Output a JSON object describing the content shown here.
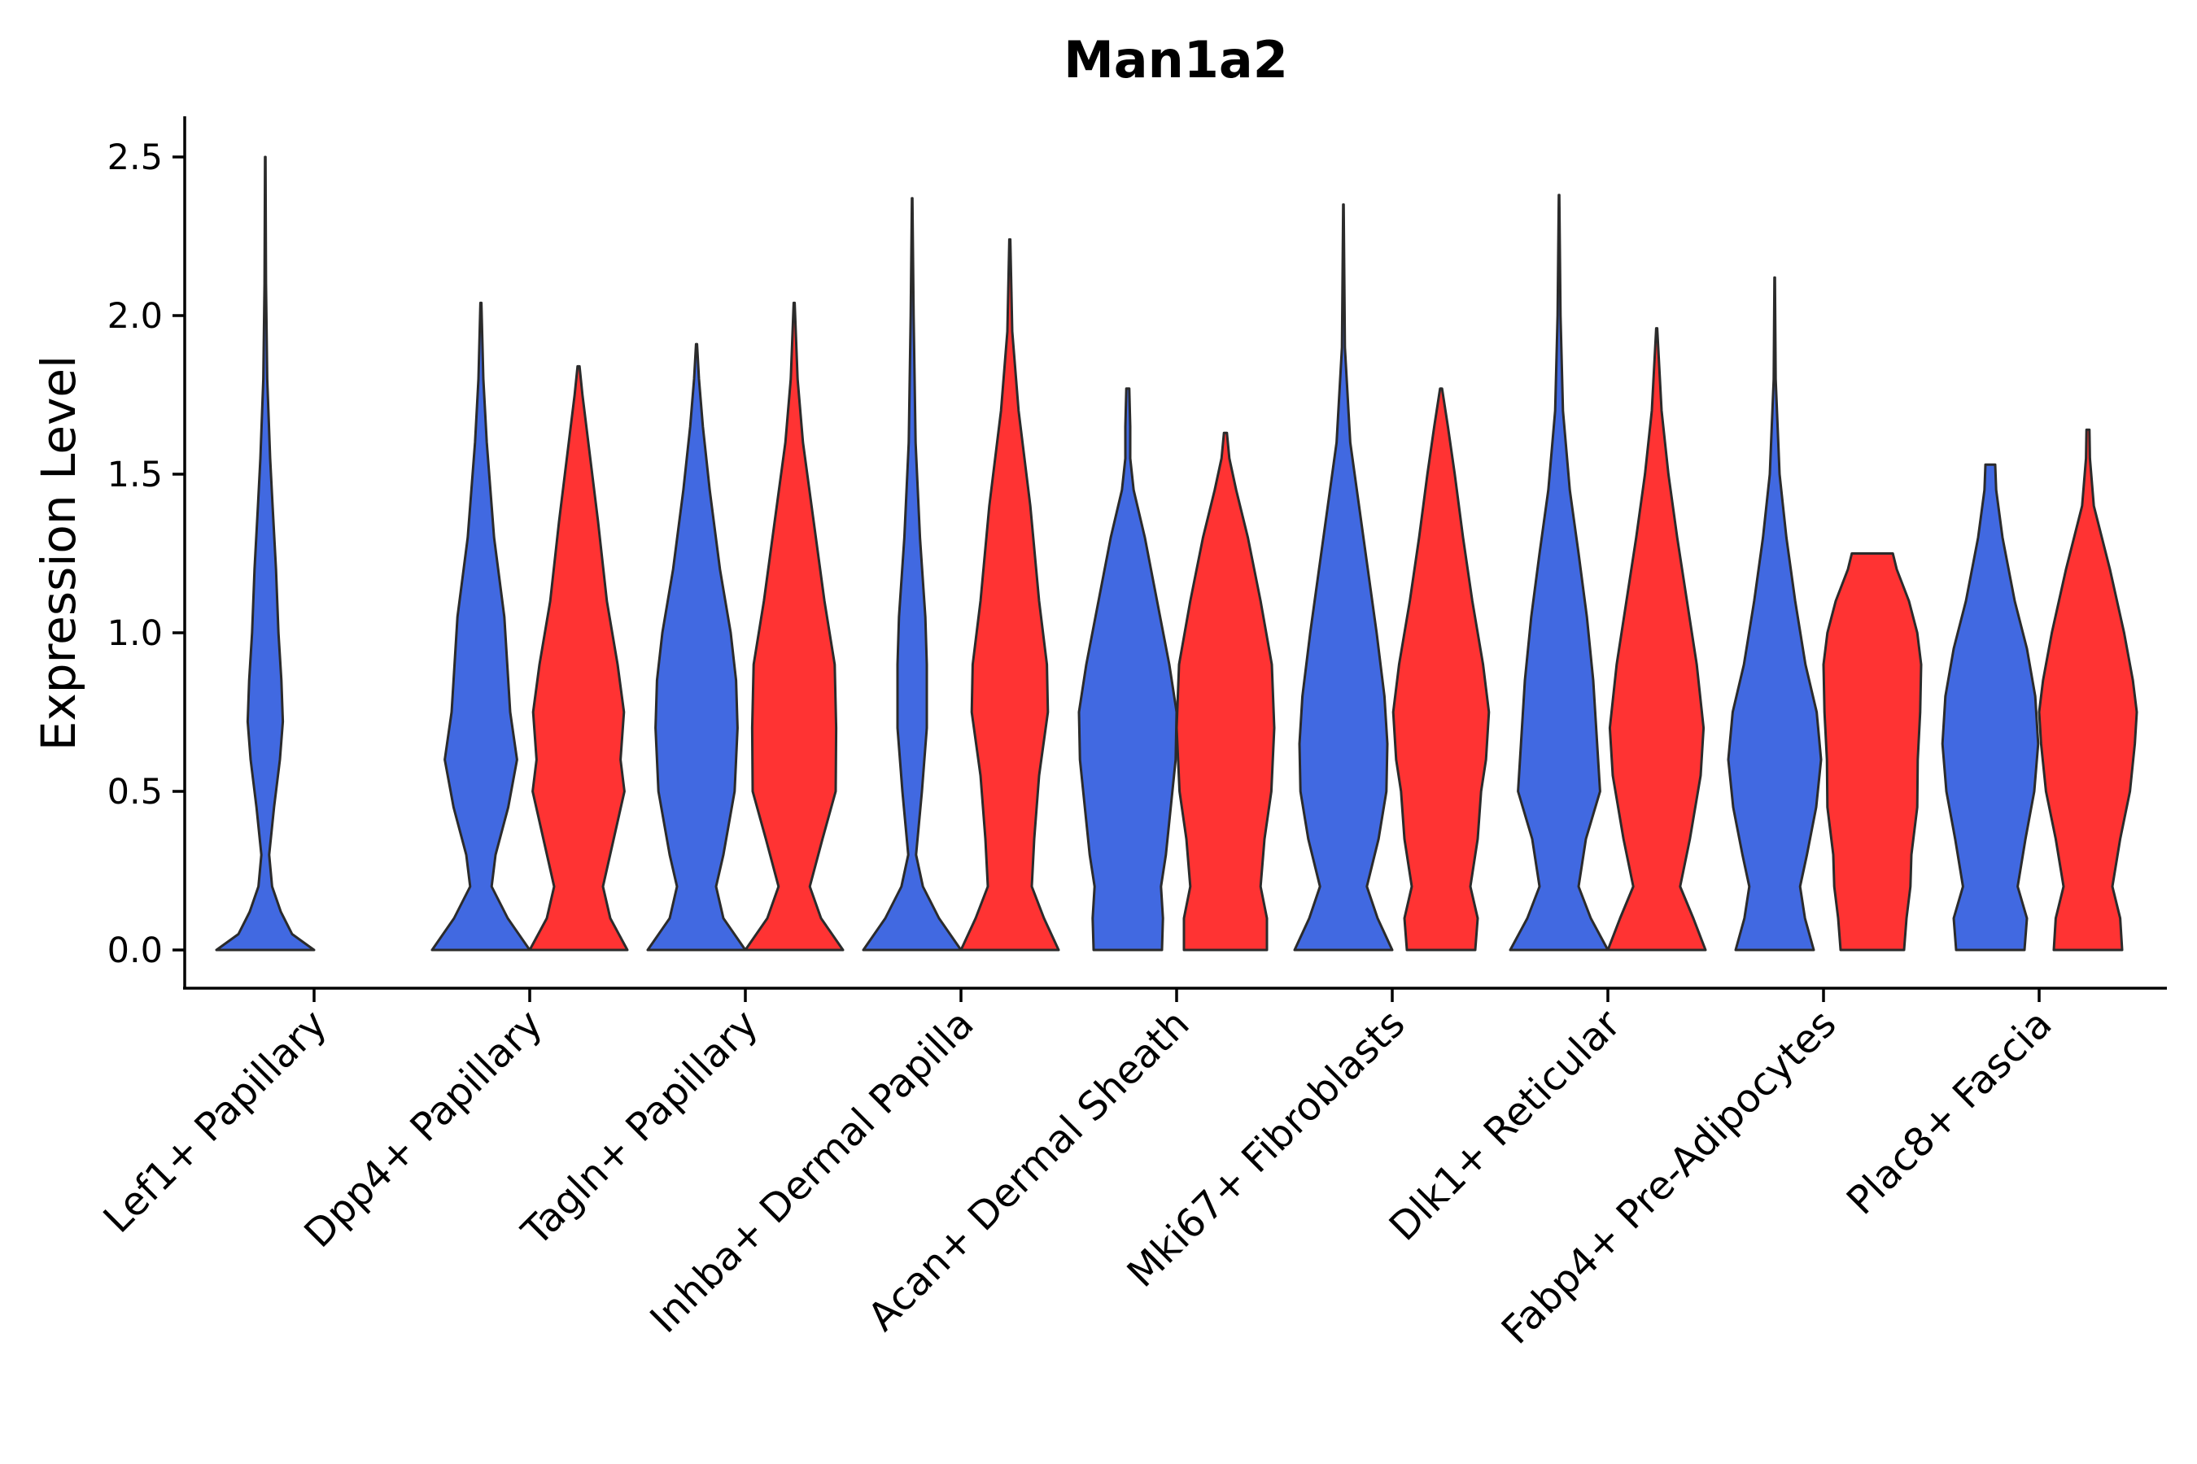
{
  "chart_data": {
    "type": "violin",
    "title": "Man1a2",
    "xlabel": "",
    "ylabel": "Expression Level",
    "ylim": [
      -0.13,
      2.63
    ],
    "yticks": [
      "0.0",
      "0.5",
      "1.0",
      "1.5",
      "2.0",
      "2.5"
    ],
    "ytick_values": [
      0,
      0.5,
      1.0,
      1.5,
      2.0,
      2.5
    ],
    "grid": false,
    "legend": "none",
    "colors": {
      "group1": "#4169E1",
      "group2": "#FF3333",
      "outline": "#2b2b2b"
    },
    "categories": [
      "Lef1+ Papillary",
      "Dpp4+ Papillary",
      "Tagln+ Papillary",
      "Inhba+ Dermal Papilla",
      "Acan+ Dermal Sheath",
      "Mki67+ Fibroblasts",
      "Dlk1+ Reticular",
      "Fabp4+ Pre-Adipocytes",
      "Plac8+ Fascia"
    ],
    "violins": [
      {
        "category": "Lef1+ Papillary",
        "group": "group1",
        "max": 2.5,
        "profile": [
          [
            0,
            1.0
          ],
          [
            0.05,
            0.55
          ],
          [
            0.12,
            0.32
          ],
          [
            0.2,
            0.14
          ],
          [
            0.3,
            0.08
          ],
          [
            0.45,
            0.18
          ],
          [
            0.6,
            0.3
          ],
          [
            0.72,
            0.36
          ],
          [
            0.85,
            0.33
          ],
          [
            1.0,
            0.27
          ],
          [
            1.2,
            0.22
          ],
          [
            1.4,
            0.15
          ],
          [
            1.55,
            0.1
          ],
          [
            1.8,
            0.04
          ],
          [
            2.1,
            0.015
          ],
          [
            2.5,
            0.005
          ]
        ]
      },
      {
        "category": "Dpp4+ Papillary",
        "group": "group1",
        "max": 2.04,
        "profile": [
          [
            0,
            1.0
          ],
          [
            0.1,
            0.55
          ],
          [
            0.2,
            0.22
          ],
          [
            0.3,
            0.3
          ],
          [
            0.45,
            0.56
          ],
          [
            0.6,
            0.74
          ],
          [
            0.75,
            0.6
          ],
          [
            0.9,
            0.54
          ],
          [
            1.05,
            0.48
          ],
          [
            1.3,
            0.27
          ],
          [
            1.6,
            0.12
          ],
          [
            1.8,
            0.05
          ],
          [
            2.04,
            0.01
          ]
        ]
      },
      {
        "category": "Dpp4+ Papillary",
        "group": "group2",
        "max": 1.84,
        "profile": [
          [
            0,
            1.0
          ],
          [
            0.1,
            0.65
          ],
          [
            0.2,
            0.5
          ],
          [
            0.35,
            0.72
          ],
          [
            0.5,
            0.94
          ],
          [
            0.6,
            0.86
          ],
          [
            0.75,
            0.93
          ],
          [
            0.9,
            0.8
          ],
          [
            1.1,
            0.58
          ],
          [
            1.35,
            0.4
          ],
          [
            1.6,
            0.2
          ],
          [
            1.75,
            0.08
          ],
          [
            1.84,
            0.02
          ]
        ]
      },
      {
        "category": "Tagln+ Papillary",
        "group": "group1",
        "max": 1.91,
        "profile": [
          [
            0,
            1.0
          ],
          [
            0.1,
            0.55
          ],
          [
            0.2,
            0.4
          ],
          [
            0.3,
            0.55
          ],
          [
            0.5,
            0.78
          ],
          [
            0.7,
            0.84
          ],
          [
            0.85,
            0.81
          ],
          [
            1.0,
            0.7
          ],
          [
            1.2,
            0.48
          ],
          [
            1.45,
            0.27
          ],
          [
            1.65,
            0.13
          ],
          [
            1.8,
            0.05
          ],
          [
            1.91,
            0.01
          ]
        ]
      },
      {
        "category": "Tagln+ Papillary",
        "group": "group2",
        "max": 2.04,
        "profile": [
          [
            0,
            1.0
          ],
          [
            0.1,
            0.55
          ],
          [
            0.2,
            0.32
          ],
          [
            0.35,
            0.58
          ],
          [
            0.5,
            0.85
          ],
          [
            0.7,
            0.86
          ],
          [
            0.9,
            0.83
          ],
          [
            1.1,
            0.62
          ],
          [
            1.35,
            0.4
          ],
          [
            1.6,
            0.18
          ],
          [
            1.8,
            0.07
          ],
          [
            2.04,
            0.01
          ]
        ]
      },
      {
        "category": "Inhba+ Dermal Papilla",
        "group": "group1",
        "max": 2.37,
        "profile": [
          [
            0,
            1.0
          ],
          [
            0.1,
            0.55
          ],
          [
            0.2,
            0.22
          ],
          [
            0.3,
            0.08
          ],
          [
            0.5,
            0.2
          ],
          [
            0.7,
            0.3
          ],
          [
            0.9,
            0.3
          ],
          [
            1.05,
            0.27
          ],
          [
            1.3,
            0.16
          ],
          [
            1.6,
            0.07
          ],
          [
            2.0,
            0.03
          ],
          [
            2.37,
            0.005
          ]
        ]
      },
      {
        "category": "Inhba+ Dermal Papilla",
        "group": "group2",
        "max": 2.24,
        "profile": [
          [
            0,
            1.0
          ],
          [
            0.1,
            0.7
          ],
          [
            0.2,
            0.45
          ],
          [
            0.35,
            0.5
          ],
          [
            0.55,
            0.6
          ],
          [
            0.75,
            0.78
          ],
          [
            0.9,
            0.76
          ],
          [
            1.1,
            0.6
          ],
          [
            1.4,
            0.42
          ],
          [
            1.7,
            0.18
          ],
          [
            1.95,
            0.05
          ],
          [
            2.24,
            0.01
          ]
        ]
      },
      {
        "category": "Acan+ Dermal Sheath",
        "group": "group1",
        "max": 1.77,
        "profile": [
          [
            0,
            0.7
          ],
          [
            0.1,
            0.72
          ],
          [
            0.2,
            0.68
          ],
          [
            0.3,
            0.78
          ],
          [
            0.45,
            0.88
          ],
          [
            0.6,
            0.98
          ],
          [
            0.75,
            1.0
          ],
          [
            0.9,
            0.85
          ],
          [
            1.1,
            0.6
          ],
          [
            1.3,
            0.35
          ],
          [
            1.45,
            0.12
          ],
          [
            1.55,
            0.05
          ],
          [
            1.65,
            0.05
          ],
          [
            1.77,
            0.03
          ]
        ]
      },
      {
        "category": "Acan+ Dermal Sheath",
        "group": "group2",
        "max": 1.63,
        "profile": [
          [
            0,
            0.85
          ],
          [
            0.1,
            0.85
          ],
          [
            0.2,
            0.72
          ],
          [
            0.35,
            0.8
          ],
          [
            0.5,
            0.94
          ],
          [
            0.7,
            1.0
          ],
          [
            0.9,
            0.95
          ],
          [
            1.1,
            0.72
          ],
          [
            1.3,
            0.46
          ],
          [
            1.45,
            0.22
          ],
          [
            1.55,
            0.08
          ],
          [
            1.63,
            0.03
          ]
        ]
      },
      {
        "category": "Mki67+ Fibroblasts",
        "group": "group1",
        "max": 2.35,
        "profile": [
          [
            0,
            1.0
          ],
          [
            0.1,
            0.7
          ],
          [
            0.2,
            0.48
          ],
          [
            0.35,
            0.72
          ],
          [
            0.5,
            0.88
          ],
          [
            0.65,
            0.9
          ],
          [
            0.8,
            0.84
          ],
          [
            1.0,
            0.68
          ],
          [
            1.2,
            0.5
          ],
          [
            1.4,
            0.32
          ],
          [
            1.6,
            0.14
          ],
          [
            1.9,
            0.03
          ],
          [
            2.35,
            0.005
          ]
        ]
      },
      {
        "category": "Mki67+ Fibroblasts",
        "group": "group2",
        "max": 1.77,
        "profile": [
          [
            0,
            0.7
          ],
          [
            0.1,
            0.75
          ],
          [
            0.2,
            0.6
          ],
          [
            0.35,
            0.75
          ],
          [
            0.5,
            0.82
          ],
          [
            0.6,
            0.92
          ],
          [
            0.75,
            0.98
          ],
          [
            0.9,
            0.86
          ],
          [
            1.1,
            0.64
          ],
          [
            1.3,
            0.45
          ],
          [
            1.5,
            0.28
          ],
          [
            1.65,
            0.14
          ],
          [
            1.77,
            0.02
          ]
        ]
      },
      {
        "category": "Dlk1+ Reticular",
        "group": "group1",
        "max": 2.38,
        "profile": [
          [
            0,
            1.0
          ],
          [
            0.1,
            0.65
          ],
          [
            0.2,
            0.4
          ],
          [
            0.35,
            0.55
          ],
          [
            0.5,
            0.84
          ],
          [
            0.65,
            0.78
          ],
          [
            0.85,
            0.7
          ],
          [
            1.05,
            0.57
          ],
          [
            1.25,
            0.4
          ],
          [
            1.45,
            0.22
          ],
          [
            1.7,
            0.08
          ],
          [
            2.0,
            0.03
          ],
          [
            2.38,
            0.005
          ]
        ]
      },
      {
        "category": "Dlk1+ Reticular",
        "group": "group2",
        "max": 1.96,
        "profile": [
          [
            0,
            1.0
          ],
          [
            0.1,
            0.75
          ],
          [
            0.2,
            0.48
          ],
          [
            0.35,
            0.68
          ],
          [
            0.55,
            0.9
          ],
          [
            0.7,
            0.96
          ],
          [
            0.9,
            0.82
          ],
          [
            1.1,
            0.62
          ],
          [
            1.3,
            0.42
          ],
          [
            1.5,
            0.24
          ],
          [
            1.7,
            0.1
          ],
          [
            1.96,
            0.01
          ]
        ]
      },
      {
        "category": "Fabp4+ Pre-Adipocytes",
        "group": "group1",
        "max": 2.12,
        "profile": [
          [
            0,
            0.8
          ],
          [
            0.1,
            0.62
          ],
          [
            0.2,
            0.52
          ],
          [
            0.3,
            0.66
          ],
          [
            0.45,
            0.85
          ],
          [
            0.6,
            0.95
          ],
          [
            0.75,
            0.86
          ],
          [
            0.9,
            0.63
          ],
          [
            1.1,
            0.42
          ],
          [
            1.3,
            0.24
          ],
          [
            1.5,
            0.1
          ],
          [
            1.8,
            0.02
          ],
          [
            2.12,
            0.005
          ]
        ]
      },
      {
        "category": "Fabp4+ Pre-Adipocytes",
        "group": "group2",
        "max": 1.25,
        "profile": [
          [
            0,
            0.65
          ],
          [
            0.1,
            0.7
          ],
          [
            0.2,
            0.78
          ],
          [
            0.3,
            0.8
          ],
          [
            0.45,
            0.92
          ],
          [
            0.6,
            0.93
          ],
          [
            0.75,
            0.98
          ],
          [
            0.9,
            1.0
          ],
          [
            1.0,
            0.92
          ],
          [
            1.1,
            0.75
          ],
          [
            1.2,
            0.5
          ],
          [
            1.25,
            0.42
          ]
        ]
      },
      {
        "category": "Plac8+ Fascia",
        "group": "group1",
        "max": 1.53,
        "profile": [
          [
            0,
            0.7
          ],
          [
            0.1,
            0.75
          ],
          [
            0.2,
            0.56
          ],
          [
            0.35,
            0.72
          ],
          [
            0.5,
            0.9
          ],
          [
            0.65,
            0.98
          ],
          [
            0.8,
            0.92
          ],
          [
            0.95,
            0.75
          ],
          [
            1.1,
            0.5
          ],
          [
            1.3,
            0.25
          ],
          [
            1.45,
            0.12
          ],
          [
            1.53,
            0.1
          ]
        ]
      },
      {
        "category": "Plac8+ Fascia",
        "group": "group2",
        "max": 1.64,
        "profile": [
          [
            0,
            0.7
          ],
          [
            0.1,
            0.66
          ],
          [
            0.2,
            0.5
          ],
          [
            0.35,
            0.66
          ],
          [
            0.5,
            0.86
          ],
          [
            0.65,
            0.96
          ],
          [
            0.75,
            1.0
          ],
          [
            0.85,
            0.92
          ],
          [
            1.0,
            0.74
          ],
          [
            1.2,
            0.45
          ],
          [
            1.4,
            0.12
          ],
          [
            1.55,
            0.04
          ],
          [
            1.64,
            0.03
          ]
        ]
      }
    ]
  }
}
